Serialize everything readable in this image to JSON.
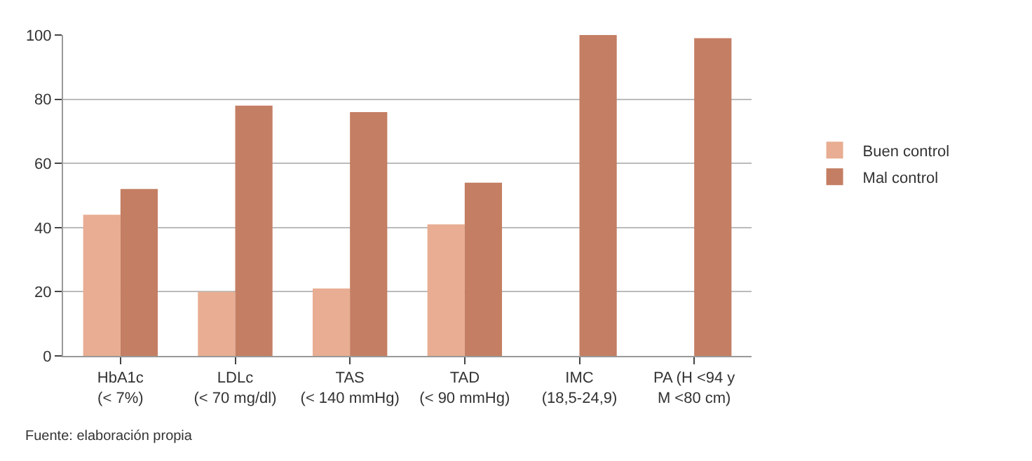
{
  "chart_data": {
    "type": "bar",
    "categories": [
      "HbA1c\n(< 7%)",
      "LDLc\n(< 70 mg/dl)",
      "TAS\n(< 140 mmHg)",
      "TAD\n(< 90 mmHg)",
      "IMC\n(18,5-24,9)",
      "PA (H <94 y\nM <80 cm)"
    ],
    "series": [
      {
        "name": "Buen control",
        "color": "#e8ad92",
        "values": [
          44,
          20,
          21,
          41,
          0,
          0
        ]
      },
      {
        "name": "Mal control",
        "color": "#c47e63",
        "values": [
          52,
          78,
          76,
          54,
          100,
          99
        ]
      }
    ],
    "ylim": [
      0,
      100
    ],
    "yticks": [
      0,
      20,
      40,
      60,
      80,
      100
    ],
    "grid": "y",
    "legend": "right",
    "annotations": [
      "Fuente: elaboración propia"
    ]
  }
}
